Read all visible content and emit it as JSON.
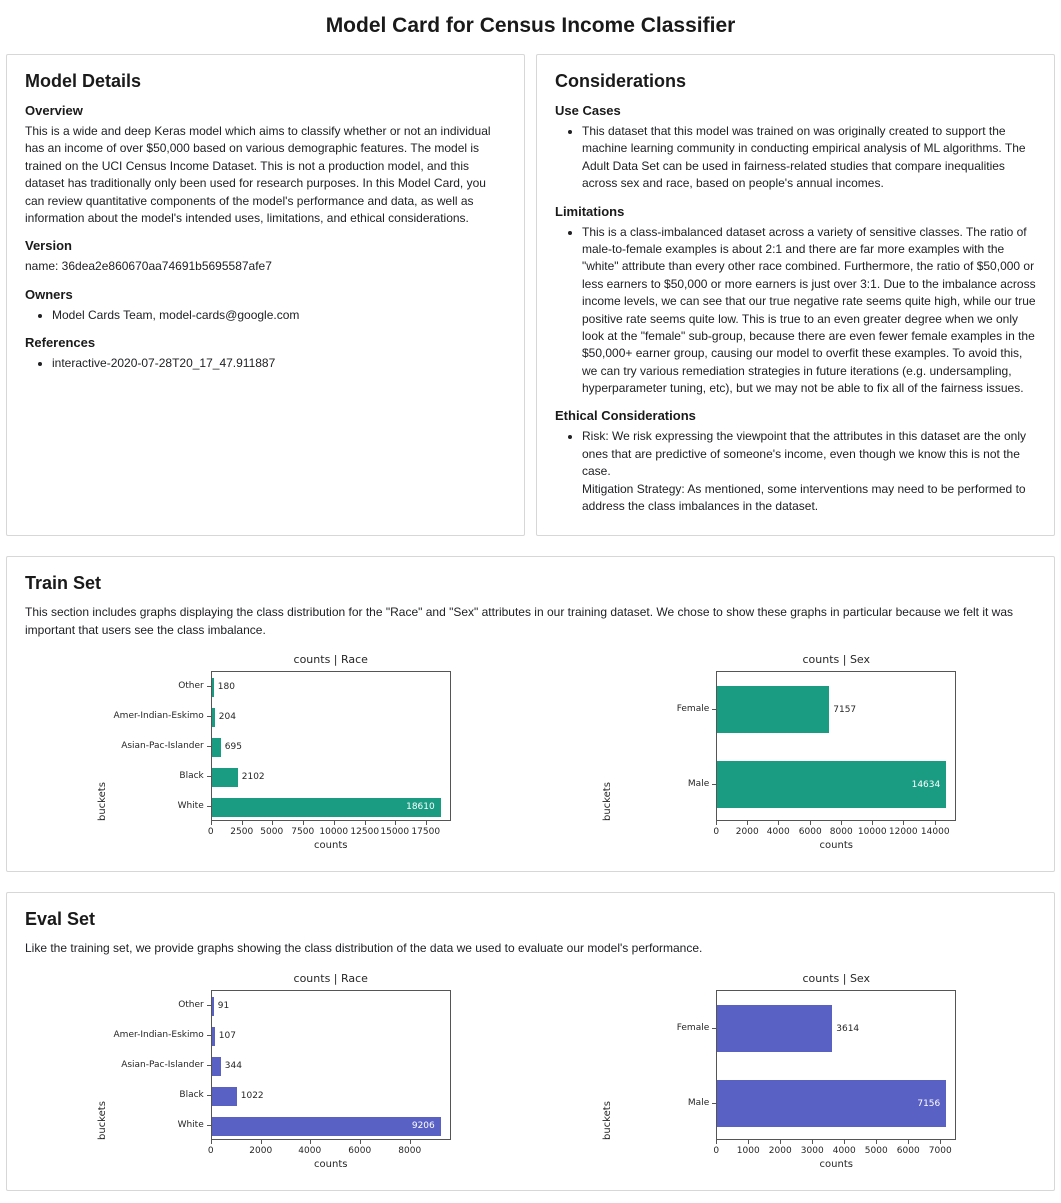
{
  "page_title": "Model Card for Census Income Classifier",
  "model_details": {
    "title": "Model Details",
    "overview": {
      "heading": "Overview",
      "text": "This is a wide and deep Keras model which aims to classify whether or not an individual has an income of over $50,000 based on various demographic features. The model is trained on the UCI Census Income Dataset. This is not a production model, and this dataset has traditionally only been used for research purposes. In this Model Card, you can review quantitative components of the model's performance and data, as well as information about the model's intended uses, limitations, and ethical considerations."
    },
    "version": {
      "heading": "Version",
      "text": "name: 36dea2e860670aa74691b5695587afe7"
    },
    "owners": {
      "heading": "Owners",
      "items": [
        "Model Cards Team, model-cards@google.com"
      ]
    },
    "references": {
      "heading": "References",
      "items": [
        "interactive-2020-07-28T20_17_47.911887"
      ]
    }
  },
  "considerations": {
    "title": "Considerations",
    "use_cases": {
      "heading": "Use Cases",
      "bullets": [
        "This dataset that this model was trained on was originally created to support the machine learning community in conducting empirical analysis of ML algorithms. The Adult Data Set can be used in fairness-related studies that compare inequalities across sex and race, based on people's annual incomes."
      ]
    },
    "limitations": {
      "heading": "Limitations",
      "bullets": [
        "This is a class-imbalanced dataset across a variety of sensitive classes. The ratio of male-to-female examples is about 2:1 and there are far more examples with the \"white\" attribute than every other race combined. Furthermore, the ratio of $50,000 or less earners to $50,000 or more earners is just over 3:1. Due to the imbalance across income levels, we can see that our true negative rate seems quite high, while our true positive rate seems quite low. This is true to an even greater degree when we only look at the \"female\" sub-group, because there are even fewer female examples in the $50,000+ earner group, causing our model to overfit these examples. To avoid this, we can try various remediation strategies in future iterations (e.g. undersampling, hyperparameter tuning, etc), but we may not be able to fix all of the fairness issues."
      ]
    },
    "ethical": {
      "heading": "Ethical Considerations",
      "bullets": [
        "Risk: We risk expressing the viewpoint that the attributes in this dataset are the only ones that are predictive of someone's income, even though we know this is not the case.\nMitigation Strategy: As mentioned, some interventions may need to be performed to address the class imbalances in the dataset."
      ]
    }
  },
  "train_set": {
    "title": "Train Set",
    "description": "This section includes graphs displaying the class distribution for the \"Race\" and \"Sex\" attributes in our training dataset. We chose to show these graphs in particular because we felt it was important that users see the class imbalance."
  },
  "eval_set": {
    "title": "Eval Set",
    "description": "Like the training set, we provide graphs showing the class distribution of the data we used to evaluate our model's performance."
  },
  "chart_data": [
    {
      "id": "train-race",
      "type": "bar",
      "orientation": "horizontal",
      "title": "counts | Race",
      "categories": [
        "Other",
        "Amer-Indian-Eskimo",
        "Asian-Pac-Islander",
        "Black",
        "White"
      ],
      "values": [
        180,
        204,
        695,
        2102,
        18610
      ],
      "xlabel": "counts",
      "ylabel": "buckets",
      "xlim": [
        0,
        19540
      ],
      "xticks": [
        0,
        2500,
        5000,
        7500,
        10000,
        12500,
        15000,
        17500
      ],
      "bar_color": "#1a9c83",
      "grid": false,
      "legend": false
    },
    {
      "id": "train-sex",
      "type": "bar",
      "orientation": "horizontal",
      "title": "counts | Sex",
      "categories": [
        "Female",
        "Male"
      ],
      "values": [
        7157,
        14634
      ],
      "xlabel": "counts",
      "ylabel": "buckets",
      "xlim": [
        0,
        15366
      ],
      "xticks": [
        0,
        2000,
        4000,
        6000,
        8000,
        10000,
        12000,
        14000
      ],
      "bar_color": "#1a9c83",
      "grid": false,
      "legend": false
    },
    {
      "id": "eval-race",
      "type": "bar",
      "orientation": "horizontal",
      "title": "counts | Race",
      "categories": [
        "Other",
        "Amer-Indian-Eskimo",
        "Asian-Pac-Islander",
        "Black",
        "White"
      ],
      "values": [
        91,
        107,
        344,
        1022,
        9206
      ],
      "xlabel": "counts",
      "ylabel": "buckets",
      "xlim": [
        0,
        9666
      ],
      "xticks": [
        0,
        2000,
        4000,
        6000,
        8000
      ],
      "bar_color": "#5a61c5",
      "grid": false,
      "legend": false
    },
    {
      "id": "eval-sex",
      "type": "bar",
      "orientation": "horizontal",
      "title": "counts | Sex",
      "categories": [
        "Female",
        "Male"
      ],
      "values": [
        3614,
        7156
      ],
      "xlabel": "counts",
      "ylabel": "buckets",
      "xlim": [
        0,
        7514
      ],
      "xticks": [
        0,
        1000,
        2000,
        3000,
        4000,
        5000,
        6000,
        7000
      ],
      "bar_color": "#5a61c5",
      "grid": false,
      "legend": false
    }
  ]
}
